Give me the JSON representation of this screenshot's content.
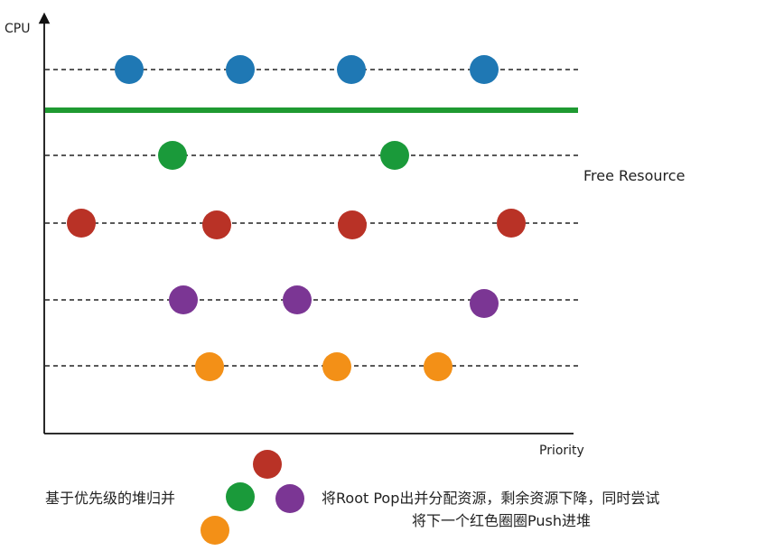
{
  "axes": {
    "y_label": "CPU",
    "x_label": "Priority"
  },
  "threshold_label": "Free Resource",
  "colors": {
    "blue": "#1f78b4",
    "green": "#1a9a3a",
    "red": "#b93226",
    "purple": "#7b3694",
    "orange": "#f39017",
    "threshold": "#1f9a32",
    "axis": "#111111",
    "dashed": "#222222"
  },
  "rows": [
    {
      "color": "blue",
      "count": 4
    },
    {
      "color": "green",
      "count": 2
    },
    {
      "color": "red",
      "count": 4
    },
    {
      "color": "purple",
      "count": 3
    },
    {
      "color": "orange",
      "count": 3
    }
  ],
  "heap": {
    "caption_left": "基于优先级的堆归并",
    "caption_right_line1": "将Root Pop出并分配资源，剩余资源下降，同时尝试",
    "caption_right_line2": "将下一个红色圈圈Push进堆",
    "nodes": [
      "red",
      "green",
      "purple",
      "orange"
    ]
  }
}
